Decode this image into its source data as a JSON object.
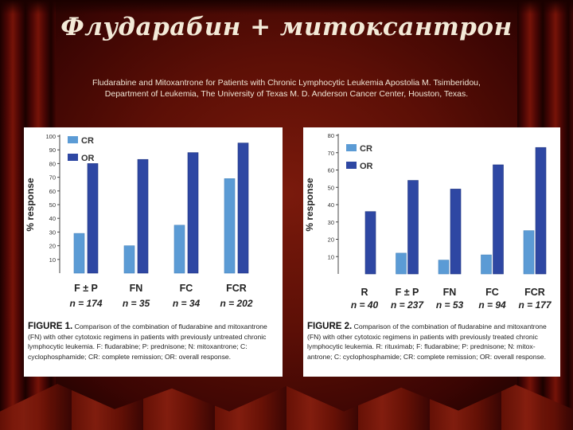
{
  "slide": {
    "title": "Флударабин + митоксантрон",
    "subtitle_line1": "Fludarabine and Mitoxantrone for Patients with Chronic Lymphocytic Leukemia Apostolia M. Tsimberidou,",
    "subtitle_line2": "Department of Leukemia, The University of Texas M. D. Anderson Cancer Center, Houston, Texas."
  },
  "colors": {
    "CR": "#5b9bd5",
    "OR": "#2e47a3"
  },
  "figure1": {
    "caption_lead": "FIGURE 1.",
    "caption_line1": "Comparison of the combination of fludarabine and mitoxantrone",
    "caption_line2": "(FN) with other cytotoxic regimens in patients with previously untreated chronic",
    "caption_line3": "lymphocytic leukemia. F: fludarabine; P: prednisone; N: mitoxantrone; C:",
    "caption_line4": "cyclophosphamide; CR: complete remission; OR: overall response."
  },
  "figure2": {
    "caption_lead": "FIGURE 2.",
    "caption_line1": "Comparison of the combination of fludarabine and mitoxantrone",
    "caption_line2": "(FN) with other cytotoxic regimens in patients with previously treated chronic",
    "caption_line3": "lymphocytic leukemia. R: rituximab; F: fludarabine; P: prednisone; N: mitox-",
    "caption_line4": "antrone; C: cyclophosphamide; CR: complete remission; OR: overall response."
  },
  "chart_data": [
    {
      "type": "bar",
      "ylabel": "% response",
      "ylim": [
        0,
        100
      ],
      "yticks": [
        10,
        20,
        30,
        40,
        50,
        60,
        70,
        80,
        90,
        100
      ],
      "grid": false,
      "legend": "top-left",
      "categories": [
        "F ± P",
        "FN",
        "FC",
        "FCR"
      ],
      "n_labels": [
        "n = 174",
        "n = 35",
        "n = 34",
        "n = 202"
      ],
      "series": [
        {
          "name": "CR",
          "values": [
            29,
            20,
            35,
            69
          ]
        },
        {
          "name": "OR",
          "values": [
            80,
            83,
            88,
            95
          ]
        }
      ]
    },
    {
      "type": "bar",
      "ylabel": "% response",
      "ylim": [
        0,
        80
      ],
      "yticks": [
        10,
        20,
        30,
        40,
        50,
        60,
        70,
        80
      ],
      "grid": false,
      "legend": "top-left",
      "categories": [
        "R",
        "F ± P",
        "FN",
        "FC",
        "FCR"
      ],
      "n_labels": [
        "n = 40",
        "n = 237",
        "n = 53",
        "n = 94",
        "n = 177"
      ],
      "series": [
        {
          "name": "CR",
          "values": [
            null,
            12,
            8,
            11,
            25
          ]
        },
        {
          "name": "OR",
          "values": [
            36,
            54,
            49,
            63,
            73
          ]
        }
      ]
    }
  ]
}
